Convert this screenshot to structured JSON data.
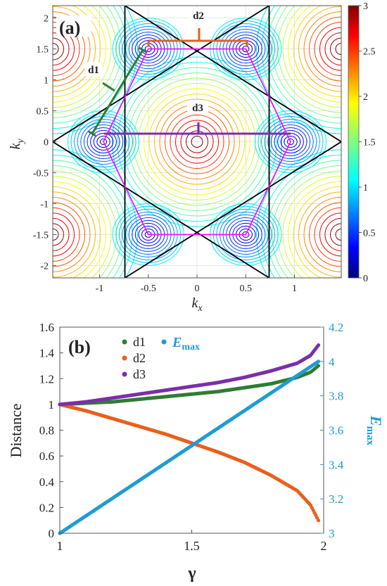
{
  "chart_data": [
    {
      "type": "heatmap",
      "panel_label": "(a)",
      "xlabel": "k",
      "xlabel_sub": "x",
      "ylabel": "k",
      "ylabel_sub": "y",
      "xlim": [
        -1.48,
        1.48
      ],
      "ylim": [
        -2.2,
        2.2
      ],
      "xticks": [
        -1,
        -0.5,
        0,
        0.5,
        1
      ],
      "xtick_labels": [
        "-1",
        "-0.5",
        "0",
        "0.5",
        "1"
      ],
      "yticks": [
        -2,
        -1.5,
        -1,
        -0.5,
        0,
        0.5,
        1,
        1.5,
        2
      ],
      "ytick_labels": [
        "-2",
        "-1.5",
        "-1",
        "-0.5",
        "0",
        "0.5",
        "1",
        "1.5",
        "2"
      ],
      "colorbar": {
        "range": [
          0,
          3
        ],
        "ticks": [
          0,
          0.5,
          1,
          1.5,
          2,
          2.5,
          3
        ],
        "tick_labels": [
          "0",
          "0.5",
          "1",
          "1.5",
          "2",
          "2.5",
          "3"
        ],
        "colormap": "jet"
      },
      "grid": true,
      "hexagon_vertices": [
        [
          0.96,
          0
        ],
        [
          0.5,
          1.5
        ],
        [
          -0.5,
          1.5
        ],
        [
          -0.96,
          0
        ],
        [
          -0.5,
          -1.5
        ],
        [
          0.5,
          -1.5
        ]
      ],
      "hexagon_color": "#ff00ff",
      "triangle_lines_color": "#000000",
      "annotations": [
        {
          "label": "d1",
          "color": "#2e7d32"
        },
        {
          "label": "d2",
          "color": "#e8601c"
        },
        {
          "label": "d3",
          "color": "#7b2fa8"
        }
      ]
    },
    {
      "type": "scatter",
      "panel_label": "(b)",
      "xlabel": "γ",
      "ylabel": "Distance",
      "ylabel_right": "E",
      "ylabel_right_sub": "max",
      "xlim": [
        1,
        2
      ],
      "ylim": [
        0,
        1.6
      ],
      "ylim_right": [
        3,
        4.2
      ],
      "xticks": [
        1,
        1.5,
        2
      ],
      "xtick_labels": [
        "1",
        "1.5",
        "2"
      ],
      "yticks": [
        0,
        0.2,
        0.4,
        0.6,
        0.8,
        1,
        1.2,
        1.4,
        1.6
      ],
      "ytick_labels": [
        "0",
        "0.2",
        "0.4",
        "0.6",
        "0.8",
        "1",
        "1.2",
        "1.4",
        "1.6"
      ],
      "yticks_right": [
        3,
        3.2,
        3.4,
        3.6,
        3.8,
        4,
        4.2
      ],
      "ytick_labels_right": [
        "3",
        "3.2",
        "3.4",
        "3.6",
        "3.8",
        "4",
        "4.2"
      ],
      "legend_placement": "top-left",
      "series": [
        {
          "name": "d1",
          "color": "#2e7d32",
          "axis": "left",
          "x": [
            1.0,
            1.1,
            1.2,
            1.3,
            1.4,
            1.5,
            1.6,
            1.7,
            1.8,
            1.9,
            1.95,
            1.98
          ],
          "values": [
            1.0,
            1.01,
            1.02,
            1.04,
            1.06,
            1.08,
            1.1,
            1.13,
            1.16,
            1.21,
            1.25,
            1.3
          ]
        },
        {
          "name": "d2",
          "color": "#e8601c",
          "axis": "left",
          "x": [
            1.0,
            1.1,
            1.2,
            1.3,
            1.4,
            1.5,
            1.6,
            1.7,
            1.8,
            1.9,
            1.95,
            1.98
          ],
          "values": [
            1.0,
            0.95,
            0.89,
            0.83,
            0.77,
            0.7,
            0.63,
            0.55,
            0.45,
            0.33,
            0.22,
            0.1
          ]
        },
        {
          "name": "d3",
          "color": "#7b2fa8",
          "axis": "left",
          "x": [
            1.0,
            1.1,
            1.2,
            1.3,
            1.4,
            1.5,
            1.6,
            1.7,
            1.8,
            1.9,
            1.95,
            1.98
          ],
          "values": [
            1.0,
            1.02,
            1.05,
            1.08,
            1.11,
            1.14,
            1.17,
            1.21,
            1.26,
            1.32,
            1.38,
            1.46
          ]
        },
        {
          "name": "E",
          "name_sub": "max",
          "color": "#1f9bd6",
          "axis": "right",
          "x": [
            1.0,
            1.98
          ],
          "values": [
            3.0,
            4.0
          ]
        }
      ]
    }
  ]
}
